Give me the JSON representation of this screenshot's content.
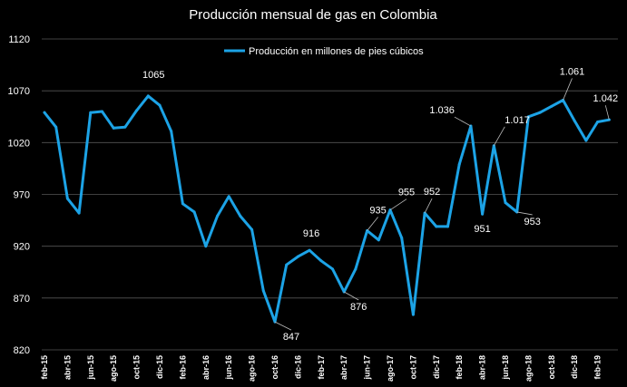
{
  "chart_data": {
    "type": "line",
    "title": "Producción mensual de gas en Colombia",
    "xlabel": "",
    "ylabel": "",
    "ylim": [
      820,
      1120
    ],
    "yticks": [
      "820",
      "870",
      "920",
      "970",
      "1020",
      "1070",
      "1120"
    ],
    "grid": true,
    "legend_position": "top-center",
    "color": "#1ca3e6",
    "categories": [
      "feb-15",
      "mar-15",
      "abr-15",
      "may-15",
      "jun-15",
      "jul-15",
      "ago-15",
      "sep-15",
      "oct-15",
      "nov-15",
      "dic-15",
      "ene-16",
      "feb-16",
      "mar-16",
      "abr-16",
      "may-16",
      "jun-16",
      "jul-16",
      "ago-16",
      "sep-16",
      "oct-16",
      "nov-16",
      "dic-16",
      "ene-17",
      "feb-17",
      "mar-17",
      "abr-17",
      "may-17",
      "jun-17",
      "jul-17",
      "ago-17",
      "sep-17",
      "oct-17",
      "nov-17",
      "dic-17",
      "ene-18",
      "feb-18",
      "mar-18",
      "abr-18",
      "may-18",
      "jun-18",
      "jul-18",
      "ago-18",
      "sep-18",
      "oct-18",
      "nov-18",
      "dic-18",
      "ene-19",
      "feb-19",
      "mar-19"
    ],
    "tick_labels": [
      "feb-15",
      "",
      "abr-15",
      "",
      "jun-15",
      "",
      "ago-15",
      "",
      "oct-15",
      "",
      "dic-15",
      "",
      "feb-16",
      "",
      "abr-16",
      "",
      "jun-16",
      "",
      "ago-16",
      "",
      "oct-16",
      "",
      "dic-16",
      "",
      "feb-17",
      "",
      "abr-17",
      "",
      "jun-17",
      "",
      "ago-17",
      "",
      "oct-17",
      "",
      "dic-17",
      "",
      "feb-18",
      "",
      "abr-18",
      "",
      "jun-18",
      "",
      "ago-18",
      "",
      "oct-18",
      "",
      "dic-18",
      "",
      "feb-19",
      ""
    ],
    "series": [
      {
        "name": "Producción en millones de pies cúbicos",
        "values": [
          1049,
          1035,
          966,
          952,
          1049,
          1050,
          1034,
          1035,
          1051,
          1065,
          1056,
          1031,
          961,
          953,
          920,
          949,
          968,
          949,
          936,
          877,
          847,
          902,
          910,
          916,
          906,
          898,
          876,
          898,
          935,
          926,
          955,
          928,
          854,
          952,
          939,
          939,
          999,
          1036,
          951,
          1017,
          962,
          953,
          1045,
          1049,
          1055,
          1061,
          1041,
          1022,
          1040,
          1042
        ]
      }
    ],
    "annotations": [
      {
        "index": 9,
        "label": "1065"
      },
      {
        "index": 20,
        "label": "847"
      },
      {
        "index": 23,
        "label": "916"
      },
      {
        "index": 26,
        "label": "876"
      },
      {
        "index": 28,
        "label": "935"
      },
      {
        "index": 30,
        "label": "955"
      },
      {
        "index": 33,
        "label": "952"
      },
      {
        "index": 37,
        "label": "1.036"
      },
      {
        "index": 38,
        "label": "951"
      },
      {
        "index": 39,
        "label": "1.017"
      },
      {
        "index": 41,
        "label": "953"
      },
      {
        "index": 45,
        "label": "1.061"
      },
      {
        "index": 49,
        "label": "1.042"
      }
    ]
  }
}
